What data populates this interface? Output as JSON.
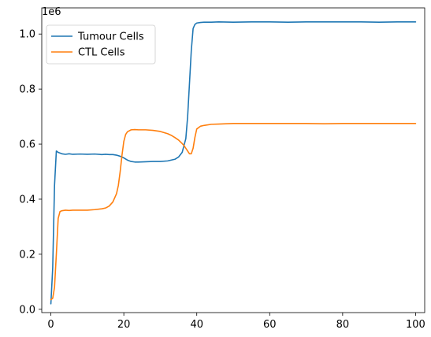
{
  "chart_data": {
    "type": "line",
    "title": "",
    "xlabel": "",
    "ylabel": "",
    "y_offset_label": "1e6",
    "xlim": [
      -2.5,
      102.5
    ],
    "ylim": [
      -0.012,
      1.095
    ],
    "x_ticks": [
      0,
      20,
      40,
      60,
      80,
      100
    ],
    "x_tick_labels": [
      "0",
      "20",
      "40",
      "60",
      "80",
      "100"
    ],
    "y_ticks": [
      0.0,
      0.2,
      0.4,
      0.6,
      0.8,
      1.0
    ],
    "y_tick_labels": [
      "0.0",
      "0.2",
      "0.4",
      "0.6",
      "0.8",
      "1.0"
    ],
    "grid": false,
    "legend_position": "top-left",
    "series": [
      {
        "name": "Tumour Cells",
        "color": "#1f77b4",
        "x": [
          0,
          0.5,
          1,
          1.5,
          2,
          3,
          4,
          5,
          6,
          8,
          10,
          12,
          14,
          15,
          16,
          17,
          18,
          19,
          20,
          21,
          22,
          23,
          24,
          26,
          28,
          30,
          32,
          34,
          35,
          36,
          37,
          37.5,
          38,
          38.5,
          39,
          39.5,
          40,
          41,
          42,
          44,
          46,
          50,
          55,
          60,
          65,
          70,
          75,
          80,
          85,
          90,
          95,
          100
        ],
        "y": [
          0.02,
          0.15,
          0.45,
          0.575,
          0.57,
          0.565,
          0.563,
          0.565,
          0.563,
          0.564,
          0.563,
          0.564,
          0.562,
          0.563,
          0.562,
          0.562,
          0.56,
          0.556,
          0.55,
          0.542,
          0.537,
          0.535,
          0.535,
          0.536,
          0.537,
          0.537,
          0.539,
          0.545,
          0.553,
          0.57,
          0.62,
          0.7,
          0.82,
          0.94,
          1.02,
          1.035,
          1.04,
          1.042,
          1.043,
          1.043,
          1.044,
          1.043,
          1.044,
          1.044,
          1.043,
          1.044,
          1.044,
          1.044,
          1.044,
          1.043,
          1.044,
          1.044
        ]
      },
      {
        "name": "CTL Cells",
        "color": "#ff7f0e",
        "x": [
          0,
          0.5,
          1,
          1.5,
          2,
          2.5,
          3,
          4,
          5,
          6,
          8,
          10,
          12,
          14,
          15,
          16,
          17,
          18,
          18.5,
          19,
          19.5,
          20,
          20.5,
          21,
          22,
          23,
          24,
          26,
          28,
          30,
          32,
          33,
          34,
          35,
          36,
          36.5,
          37,
          37.5,
          38,
          38.5,
          39,
          39.5,
          40,
          41,
          42,
          44,
          46,
          50,
          55,
          60,
          65,
          70,
          75,
          80,
          85,
          90,
          95,
          100
        ],
        "y": [
          0.035,
          0.04,
          0.08,
          0.2,
          0.33,
          0.355,
          0.358,
          0.36,
          0.359,
          0.36,
          0.36,
          0.36,
          0.362,
          0.365,
          0.368,
          0.375,
          0.39,
          0.42,
          0.45,
          0.5,
          0.56,
          0.61,
          0.635,
          0.645,
          0.652,
          0.653,
          0.652,
          0.652,
          0.65,
          0.646,
          0.638,
          0.632,
          0.624,
          0.615,
          0.602,
          0.595,
          0.585,
          0.575,
          0.565,
          0.565,
          0.585,
          0.625,
          0.655,
          0.665,
          0.668,
          0.672,
          0.673,
          0.675,
          0.675,
          0.675,
          0.675,
          0.675,
          0.674,
          0.675,
          0.675,
          0.675,
          0.675,
          0.675
        ]
      }
    ]
  }
}
